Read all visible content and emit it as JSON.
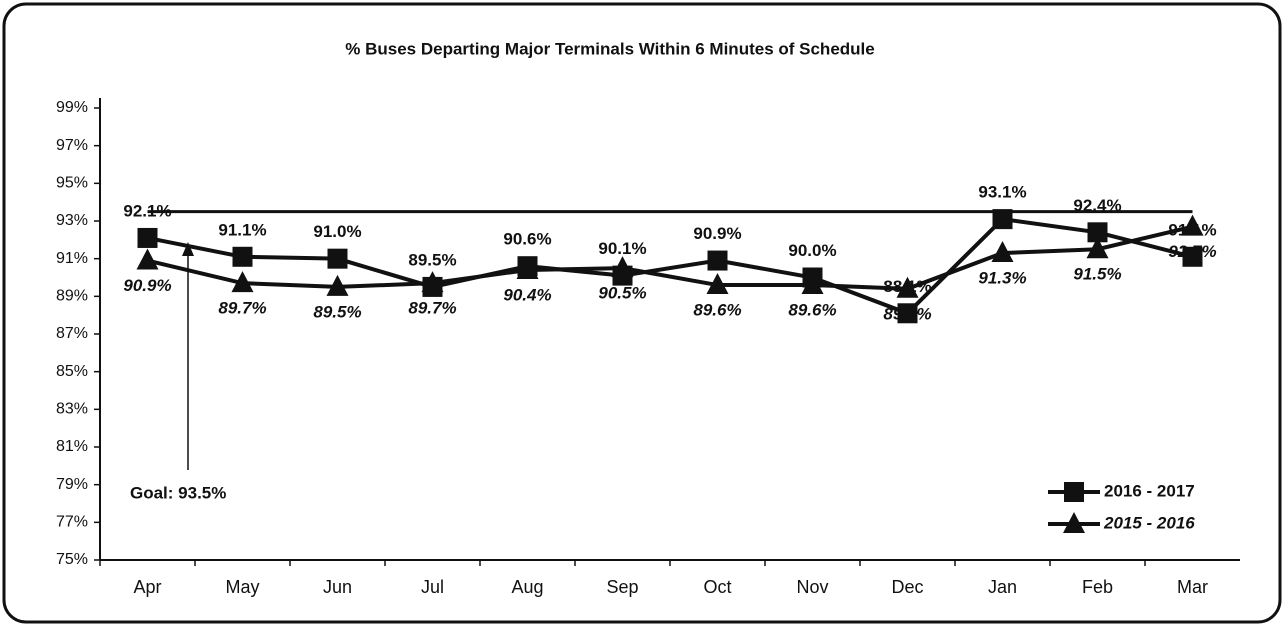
{
  "chart_data": {
    "type": "line",
    "title": "% Buses Departing Major Terminals Within 6 Minutes of Schedule",
    "categories": [
      "Apr",
      "May",
      "Jun",
      "Jul",
      "Aug",
      "Sep",
      "Oct",
      "Nov",
      "Dec",
      "Jan",
      "Feb",
      "Mar"
    ],
    "series": [
      {
        "name": "2016 - 2017",
        "color": "#111111",
        "marker": "square",
        "values": [
          92.1,
          91.1,
          91.0,
          89.5,
          90.6,
          90.1,
          90.9,
          90.0,
          88.1,
          93.1,
          92.4,
          91.1
        ],
        "value_labels": [
          "92.1%",
          "91.1%",
          "91.0%",
          "89.5%",
          "90.6%",
          "90.1%",
          "90.9%",
          "90.0%",
          "88.1%",
          "93.1%",
          "92.4%",
          "91.1%"
        ]
      },
      {
        "name": "2015 - 2016",
        "color": "#111111",
        "marker": "triangle",
        "values": [
          90.9,
          89.7,
          89.5,
          89.7,
          90.4,
          90.5,
          89.6,
          89.6,
          89.4,
          91.3,
          91.5,
          92.7
        ],
        "value_labels": [
          "90.9%",
          "89.7%",
          "89.5%",
          "89.7%",
          "90.4%",
          "90.5%",
          "89.6%",
          "89.6%",
          "89.4%",
          "91.3%",
          "91.5%",
          "92.7%"
        ]
      }
    ],
    "goal": 93.5,
    "goal_label": "Goal: 93.5%",
    "ylim": [
      75,
      99
    ],
    "yticks": [
      {
        "value": 75,
        "label": "75%"
      },
      {
        "value": 77,
        "label": "77%"
      },
      {
        "value": 79,
        "label": "79%"
      },
      {
        "value": 81,
        "label": "81%"
      },
      {
        "value": 83,
        "label": "83%"
      },
      {
        "value": 85,
        "label": "85%"
      },
      {
        "value": 87,
        "label": "87%"
      },
      {
        "value": 89,
        "label": "89%"
      },
      {
        "value": 91,
        "label": "91%"
      },
      {
        "value": 93,
        "label": "93%"
      },
      {
        "value": 95,
        "label": "95%"
      },
      {
        "value": 97,
        "label": "97%"
      },
      {
        "value": 99,
        "label": "99%"
      }
    ],
    "grid": false,
    "legend": "lower right"
  }
}
